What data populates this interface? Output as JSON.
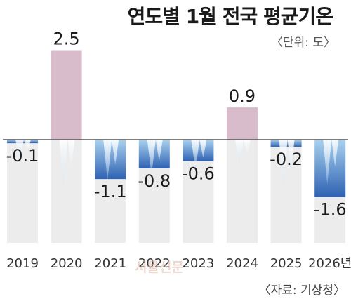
{
  "chart_data": {
    "type": "bar",
    "title": "연도별 1월 전국 평균기온",
    "unit_label": "〈단위: 도〉",
    "source": "〈자료: 기상청〉",
    "categories": [
      "2019",
      "2020",
      "2021",
      "2022",
      "2023",
      "2024",
      "2025",
      "2026년"
    ],
    "values": [
      -0.1,
      2.5,
      -1.1,
      -0.8,
      -0.6,
      0.9,
      -0.2,
      -1.6
    ],
    "value_labels": [
      "-0.1",
      "2.5",
      "-1.1",
      "-0.8",
      "-0.6",
      "0.9",
      "-0.2",
      "-1.6"
    ],
    "ylim": [
      -2.0,
      2.5
    ],
    "colors": {
      "positive": "#d8bccb",
      "negative_top": "#a9d1ee",
      "negative_bottom": "#2e62b3",
      "column_bg": "#ececec",
      "baseline": "#555555"
    }
  },
  "watermark": "서울신문"
}
